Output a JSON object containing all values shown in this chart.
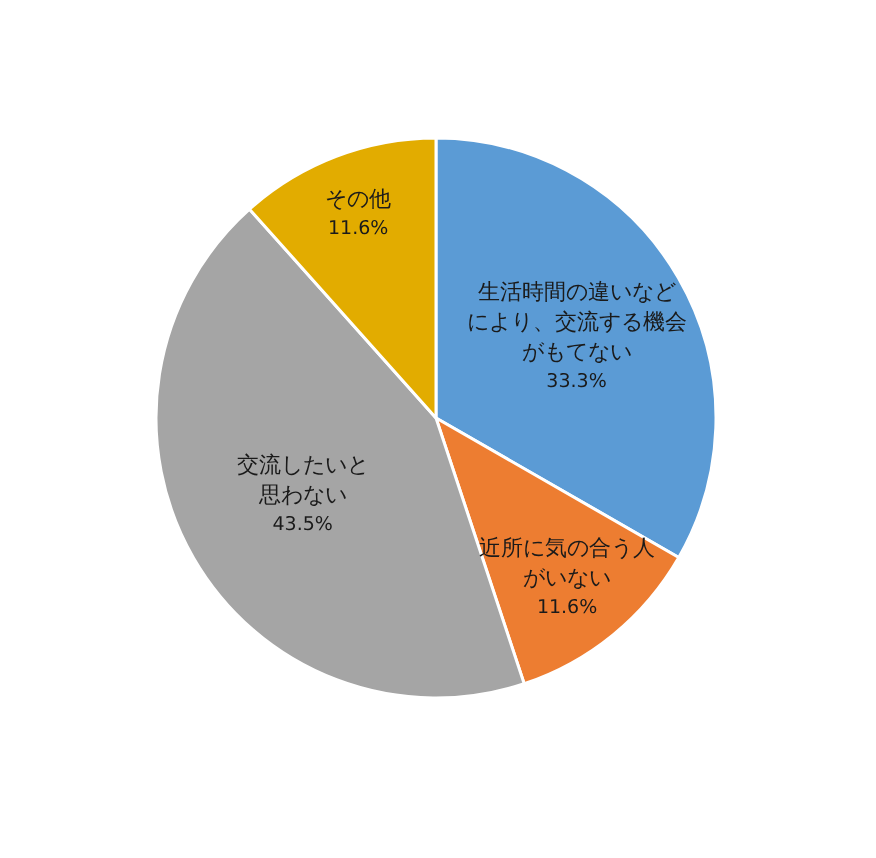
{
  "chart_data": {
    "type": "pie",
    "categories": [
      "生活時間の違いなどにより、交流する機会がもてない",
      "近所に気の合う人がいない",
      "交流したいと思わない",
      "その他"
    ],
    "values": [
      33.3,
      11.6,
      43.5,
      11.6
    ],
    "colors": [
      "#5b9bd5",
      "#ed7d31",
      "#a5a5a5",
      "#e2ac00"
    ],
    "value_labels": [
      "33.3%",
      "11.6%",
      "43.5%",
      "11.6%"
    ],
    "legend": false
  }
}
